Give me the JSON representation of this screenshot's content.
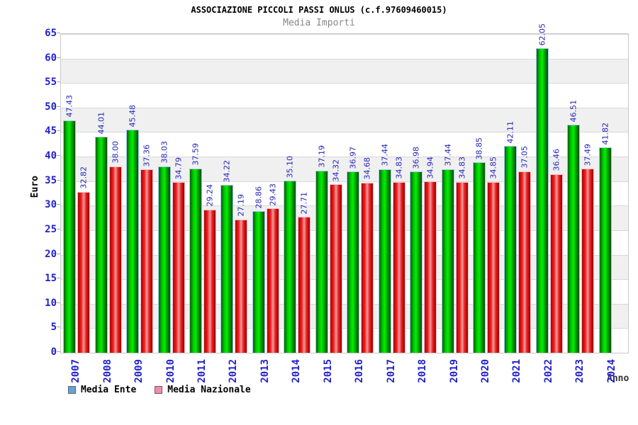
{
  "chart_data": {
    "type": "bar",
    "title": "ASSOCIAZIONE PICCOLI PASSI ONLUS (c.f.97609460015)",
    "subtitle": "Media Importi",
    "ylabel": "Euro",
    "xlabel": "Anno",
    "ylim": [
      0,
      65
    ],
    "ytick_step": 5,
    "value_decimals": 2,
    "grid": true,
    "legend_position": "bottom-left",
    "categories": [
      "2007",
      "2008",
      "2009",
      "2010",
      "2011",
      "2012",
      "2013",
      "2014",
      "2015",
      "2016",
      "2017",
      "2018",
      "2019",
      "2020",
      "2021",
      "2022",
      "2023",
      "2024"
    ],
    "series": [
      {
        "name": "Media Ente",
        "values": [
          47.43,
          44.01,
          45.48,
          38.03,
          37.59,
          34.22,
          28.86,
          35.1,
          37.19,
          36.97,
          37.44,
          36.98,
          37.44,
          38.85,
          42.11,
          62.05,
          46.51,
          41.82
        ]
      },
      {
        "name": "Media Nazionale",
        "values": [
          32.82,
          38.0,
          37.36,
          34.79,
          29.24,
          27.19,
          29.43,
          27.71,
          34.32,
          34.68,
          34.83,
          34.94,
          34.83,
          34.85,
          37.05,
          36.46,
          37.49,
          null
        ]
      }
    ],
    "colors": {
      "axis_text": "#2222cc",
      "value_label": "#2525bb",
      "band": "#f0f0f0",
      "gridline": "#d8d8d8",
      "plot_border": "#c9c9c9",
      "ente_gradient": [
        "#056105",
        "#00cc00",
        "#00ef00",
        "#009d00",
        "#034f03"
      ],
      "ente_border": "#a5c9ee",
      "nazionale_gradient": [
        "#ad0000",
        "#f52020",
        "#e8a0a0",
        "#ee1c1c",
        "#970000"
      ],
      "nazionale_border": "#f6bdc9",
      "legend": [
        {
          "fill": "#68a0d8",
          "border": "#5a6670"
        },
        {
          "fill": "#f08cb0",
          "border": "#70585e"
        }
      ]
    }
  }
}
